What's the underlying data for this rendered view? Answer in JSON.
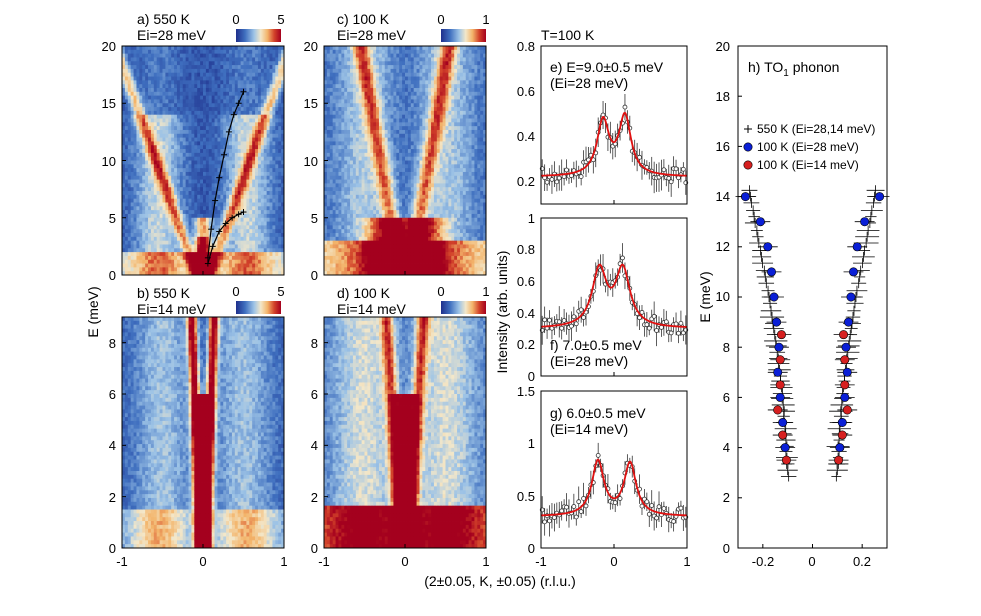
{
  "figure": {
    "xlabel_shared": "(2±0.05, K, ±0.05) (r.l.u.)",
    "ylabel_maps": "E (meV)",
    "ylabel_cuts": "Intensity (arb. units)"
  },
  "chart_data": [
    {
      "id": "a",
      "type": "heatmap",
      "title": "a) 550 K",
      "subtitle": "Ei=28 meV",
      "colorbar": {
        "min_label": "0",
        "max_label": "5"
      },
      "xlim": [
        -1,
        1
      ],
      "ylim": [
        0,
        20
      ],
      "xticks": [
        "-1",
        "0",
        "1"
      ],
      "yticks": [
        "0",
        "5",
        "10",
        "15",
        "20"
      ],
      "overlay_points": {
        "name": "550 K dispersion",
        "upper_branch": [
          [
            0.06,
            1.5
          ],
          [
            0.1,
            4
          ],
          [
            0.15,
            6.5
          ],
          [
            0.2,
            8.5
          ],
          [
            0.26,
            10.5
          ],
          [
            0.32,
            12.5
          ],
          [
            0.38,
            14
          ],
          [
            0.44,
            15
          ],
          [
            0.5,
            16
          ]
        ],
        "lower_branch": [
          [
            0.06,
            1
          ],
          [
            0.12,
            2.5
          ],
          [
            0.2,
            3.8
          ],
          [
            0.28,
            4.5
          ],
          [
            0.36,
            5
          ],
          [
            0.44,
            5.3
          ],
          [
            0.5,
            5.5
          ]
        ]
      }
    },
    {
      "id": "b",
      "type": "heatmap",
      "title": "b) 550 K",
      "subtitle": "Ei=14 meV",
      "colorbar": {
        "min_label": "0",
        "max_label": "5"
      },
      "xlim": [
        -1,
        1
      ],
      "ylim": [
        0,
        9
      ],
      "xticks": [
        "-1",
        "0",
        "1"
      ],
      "yticks": [
        "0",
        "2",
        "4",
        "6",
        "8"
      ]
    },
    {
      "id": "c",
      "type": "heatmap",
      "title": "c) 100 K",
      "subtitle": "Ei=28 meV",
      "colorbar": {
        "min_label": "0",
        "max_label": "1"
      },
      "xlim": [
        -1,
        1
      ],
      "ylim": [
        0,
        20
      ],
      "xticks": [
        "-1",
        "0",
        "1"
      ],
      "yticks": [
        "0",
        "5",
        "10",
        "15",
        "20"
      ]
    },
    {
      "id": "d",
      "type": "heatmap",
      "title": "d) 100 K",
      "subtitle": "Ei=14 meV",
      "colorbar": {
        "min_label": "0",
        "max_label": "1"
      },
      "xlim": [
        -1,
        1
      ],
      "ylim": [
        0,
        9
      ],
      "xticks": [
        "-1",
        "0",
        "1"
      ],
      "yticks": [
        "0",
        "2",
        "4",
        "6",
        "8"
      ]
    },
    {
      "id": "e",
      "type": "scatter",
      "header": "T=100 K",
      "annotation": [
        "e) E=9.0±0.5 meV",
        "(Ei=28 meV)"
      ],
      "xlim": [
        -1,
        1
      ],
      "ylim": [
        0.1,
        0.8
      ],
      "xticks": [],
      "yticks": [
        "0.2",
        "0.4",
        "0.6",
        "0.8"
      ],
      "fit": {
        "baseline": 0.22,
        "peaks": [
          [
            -0.15,
            0.24
          ],
          [
            0.15,
            0.26
          ]
        ],
        "width": 0.1
      }
    },
    {
      "id": "f",
      "type": "scatter",
      "annotation": [
        "f) 7.0±0.5 meV",
        "(Ei=28 meV)"
      ],
      "xlim": [
        -1,
        1
      ],
      "ylim": [
        0,
        1
      ],
      "xticks": [],
      "yticks": [
        "0",
        "0.2",
        "0.4",
        "0.6",
        "0.8",
        "1"
      ],
      "fit": {
        "baseline": 0.3,
        "peaks": [
          [
            -0.2,
            0.36
          ],
          [
            0.12,
            0.36
          ]
        ],
        "width": 0.12
      }
    },
    {
      "id": "g",
      "type": "scatter",
      "annotation": [
        "g) 6.0±0.5 meV",
        "(Ei=14 meV)"
      ],
      "xlim": [
        -1,
        1
      ],
      "ylim": [
        0,
        1.5
      ],
      "xticks": [
        "-1",
        "0",
        "1"
      ],
      "yticks": [
        "0",
        "0.5",
        "1",
        "1.5"
      ],
      "fit": {
        "baseline": 0.3,
        "peaks": [
          [
            -0.22,
            0.52
          ],
          [
            0.22,
            0.5
          ]
        ],
        "width": 0.1
      }
    },
    {
      "id": "h",
      "type": "scatter",
      "title": "h) TO",
      "title_sub": "1",
      "title_rest": " phonon",
      "xlabel": "",
      "ylabel": "E (meV)",
      "xlim": [
        -0.3,
        0.3
      ],
      "ylim": [
        0,
        20
      ],
      "xticks": [
        "-0.2",
        "0",
        "0.2"
      ],
      "yticks": [
        "0",
        "2",
        "4",
        "6",
        "8",
        "10",
        "12",
        "14",
        "16",
        "18",
        "20"
      ],
      "legend_position": "top-left",
      "series": [
        {
          "name": "550 K (Ei=28,14 meV)",
          "marker": "plus",
          "color": "#000000",
          "points": [
            [
              -0.25,
              14
            ],
            [
              -0.235,
              13.2
            ],
            [
              -0.22,
              12.4
            ],
            [
              -0.205,
              11.6
            ],
            [
              -0.19,
              10.8
            ],
            [
              -0.175,
              10
            ],
            [
              -0.163,
              9.2
            ],
            [
              -0.152,
              8.5
            ],
            [
              -0.142,
              7.8
            ],
            [
              -0.133,
              7.1
            ],
            [
              -0.125,
              6.4
            ],
            [
              -0.118,
              5.7
            ],
            [
              -0.112,
              5
            ],
            [
              -0.107,
              4.3
            ],
            [
              -0.103,
              3.6
            ],
            [
              -0.1,
              3.1
            ],
            [
              0.25,
              14
            ],
            [
              0.235,
              13.2
            ],
            [
              0.22,
              12.4
            ],
            [
              0.205,
              11.6
            ],
            [
              0.19,
              10.8
            ],
            [
              0.175,
              10
            ],
            [
              0.163,
              9.2
            ],
            [
              0.152,
              8.5
            ],
            [
              0.142,
              7.8
            ],
            [
              0.133,
              7.1
            ],
            [
              0.125,
              6.4
            ],
            [
              0.118,
              5.7
            ],
            [
              0.112,
              5
            ],
            [
              0.107,
              4.3
            ],
            [
              0.103,
              3.6
            ],
            [
              0.1,
              3.1
            ]
          ]
        },
        {
          "name": "100 K (Ei=28 meV)",
          "marker": "circle",
          "color": "#0a1fd6",
          "points": [
            [
              -0.27,
              14
            ],
            [
              -0.21,
              13
            ],
            [
              -0.18,
              12
            ],
            [
              -0.165,
              11
            ],
            [
              -0.155,
              10
            ],
            [
              -0.145,
              9
            ],
            [
              -0.135,
              8
            ],
            [
              -0.14,
              7
            ],
            [
              -0.13,
              6
            ],
            [
              -0.12,
              5
            ],
            [
              -0.11,
              4
            ],
            [
              0.27,
              14
            ],
            [
              0.21,
              13
            ],
            [
              0.18,
              12
            ],
            [
              0.165,
              11
            ],
            [
              0.155,
              10
            ],
            [
              0.145,
              9
            ],
            [
              0.135,
              8
            ],
            [
              0.14,
              7
            ],
            [
              0.13,
              6
            ],
            [
              0.12,
              5
            ],
            [
              0.11,
              4
            ]
          ]
        },
        {
          "name": "100 K (Ei=14 meV)",
          "marker": "circle",
          "color": "#d62020",
          "points": [
            [
              -0.125,
              8.5
            ],
            [
              -0.13,
              7.5
            ],
            [
              -0.13,
              6.5
            ],
            [
              -0.14,
              5.5
            ],
            [
              -0.12,
              4.5
            ],
            [
              -0.105,
              3.5
            ],
            [
              0.125,
              8.5
            ],
            [
              0.13,
              7.5
            ],
            [
              0.13,
              6.5
            ],
            [
              0.14,
              5.5
            ],
            [
              0.12,
              4.5
            ],
            [
              0.105,
              3.5
            ]
          ]
        }
      ]
    }
  ]
}
